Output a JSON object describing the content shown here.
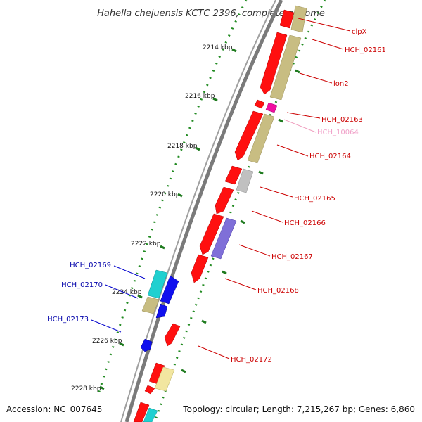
{
  "title": "Hahella chejuensis KCTC 2396, complete genome",
  "footer": {
    "accession": "Accession: NC_007645",
    "summary": "Topology: circular; Length: 7,215,267 bp; Genes: 6,860"
  },
  "ticks": [
    "2214 kbp",
    "2216 kbp",
    "2218 kbp",
    "2220 kbp",
    "2222 kbp",
    "2224 kbp",
    "2226 kbp",
    "2228 kbp"
  ],
  "colors": {
    "backbone": "#8a8a8a",
    "gene_red": "#ff1010",
    "gene_blue": "#1010ee",
    "cyan": "#20d0d0",
    "khaki": "#c8bd82",
    "pale_yellow": "#f2e6a0",
    "magenta": "#f010a0",
    "grey": "#c0c0c0",
    "violet": "#7f6fd8",
    "tick_green": "#228b22"
  },
  "labels_right": [
    "clpX",
    "HCH_02161",
    "lon2",
    "HCH_02163",
    "HCH_10064",
    "HCH_02164",
    "HCH_02165",
    "HCH_02166",
    "HCH_02167",
    "HCH_02168",
    "HCH_02172"
  ],
  "labels_left": [
    "HCH_02169",
    "HCH_02170",
    "HCH_02173"
  ]
}
